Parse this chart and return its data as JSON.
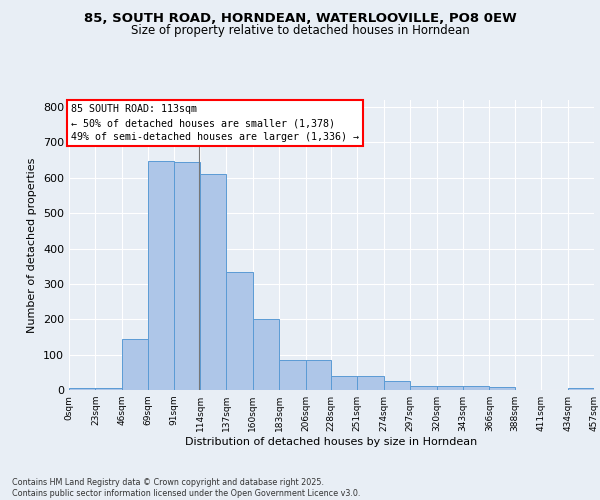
{
  "title_line1": "85, SOUTH ROAD, HORNDEAN, WATERLOOVILLE, PO8 0EW",
  "title_line2": "Size of property relative to detached houses in Horndean",
  "xlabel": "Distribution of detached houses by size in Horndean",
  "ylabel": "Number of detached properties",
  "bin_edges": [
    0,
    23,
    46,
    69,
    91,
    114,
    137,
    160,
    183,
    206,
    228,
    251,
    274,
    297,
    320,
    343,
    366,
    388,
    411,
    434,
    457
  ],
  "bar_heights": [
    5,
    7,
    145,
    648,
    645,
    611,
    335,
    200,
    85,
    85,
    40,
    40,
    25,
    10,
    12,
    12,
    8,
    0,
    0,
    5
  ],
  "bar_color": "#aec6e8",
  "bar_edge_color": "#5b9bd5",
  "annotation_text": "85 SOUTH ROAD: 113sqm\n← 50% of detached houses are smaller (1,378)\n49% of semi-detached houses are larger (1,336) →",
  "vline_x": 113,
  "ylim": [
    0,
    820
  ],
  "xlim": [
    0,
    457
  ],
  "background_color": "#e8eef5",
  "plot_bg_color": "#e8eef5",
  "grid_color": "#ffffff",
  "footer_text": "Contains HM Land Registry data © Crown copyright and database right 2025.\nContains public sector information licensed under the Open Government Licence v3.0.",
  "tick_labels": [
    "0sqm",
    "23sqm",
    "46sqm",
    "69sqm",
    "91sqm",
    "114sqm",
    "137sqm",
    "160sqm",
    "183sqm",
    "206sqm",
    "228sqm",
    "251sqm",
    "274sqm",
    "297sqm",
    "320sqm",
    "343sqm",
    "366sqm",
    "388sqm",
    "411sqm",
    "434sqm",
    "457sqm"
  ]
}
